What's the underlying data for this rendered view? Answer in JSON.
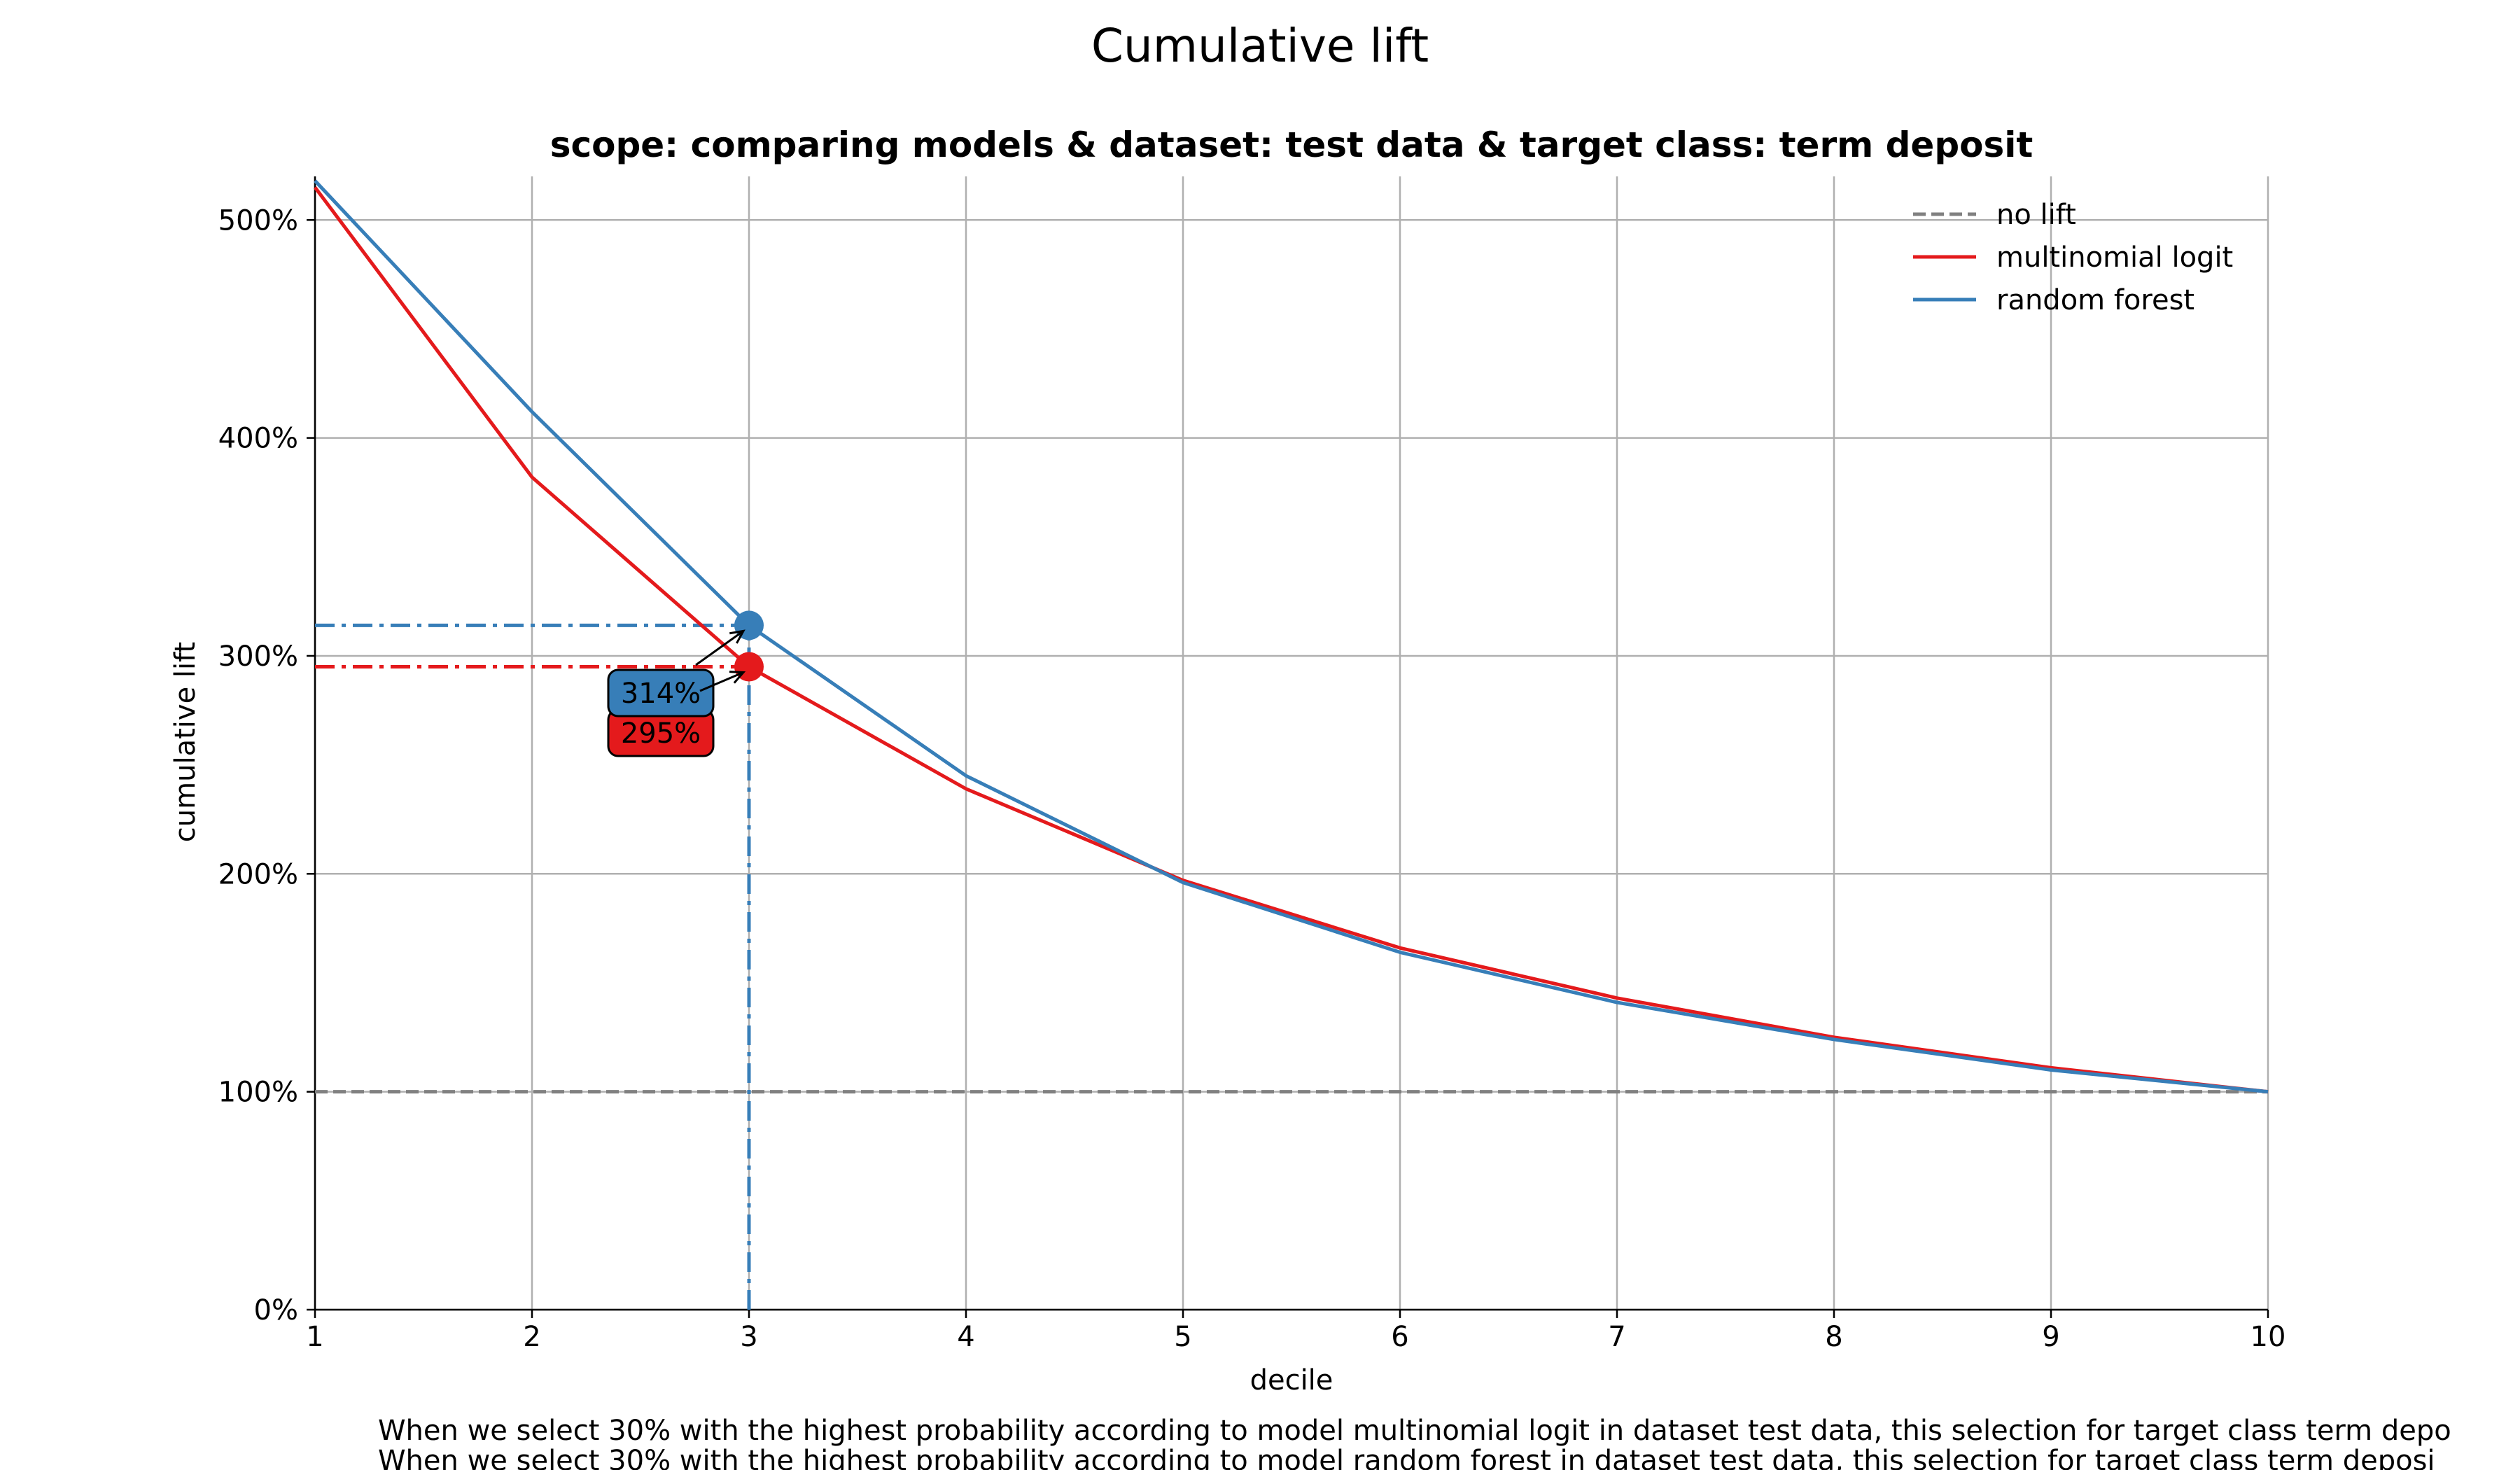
{
  "figure": {
    "suptitle": "Cumulative lift",
    "footnotes": [
      "When we select 30% with the highest probability according to model multinomial logit in dataset test data, this selection for target class term depo",
      "When we select 30% with the highest probability according to model random forest in dataset test data, this selection for target class term deposi"
    ]
  },
  "chart_data": {
    "type": "line",
    "title": "scope: comparing models & dataset: test data & target class: term deposit",
    "xlabel": "decile",
    "ylabel": "cumulative lift",
    "xlim": [
      1,
      10
    ],
    "ylim": [
      0,
      5.2
    ],
    "x_ticks": [
      1,
      2,
      3,
      4,
      5,
      6,
      7,
      8,
      9,
      10
    ],
    "x_tick_labels": [
      "1",
      "2",
      "3",
      "4",
      "5",
      "6",
      "7",
      "8",
      "9",
      "10"
    ],
    "y_ticks": [
      0,
      1,
      2,
      3,
      4,
      5
    ],
    "y_tick_labels": [
      "0%",
      "100%",
      "200%",
      "300%",
      "400%",
      "500%"
    ],
    "grid": true,
    "legend_position": "top-right",
    "x": [
      1,
      2,
      3,
      4,
      5,
      6,
      7,
      8,
      9,
      10
    ],
    "series": [
      {
        "name": "no lift",
        "style": "dashed",
        "color": "#808080",
        "values": [
          1,
          1,
          1,
          1,
          1,
          1,
          1,
          1,
          1,
          1
        ]
      },
      {
        "name": "multinomial logit",
        "style": "solid",
        "color": "#e41a1c",
        "values": [
          5.15,
          3.82,
          2.95,
          2.39,
          1.97,
          1.66,
          1.43,
          1.25,
          1.11,
          1.0
        ]
      },
      {
        "name": "random forest",
        "style": "solid",
        "color": "#377eb8",
        "values": [
          5.18,
          4.12,
          3.14,
          2.45,
          1.96,
          1.64,
          1.41,
          1.24,
          1.1,
          1.0
        ]
      }
    ],
    "highlight": {
      "decile": 3,
      "points": [
        {
          "series": "multinomial logit",
          "value": 2.95,
          "label": "295%",
          "color": "#e41a1c"
        },
        {
          "series": "random forest",
          "value": 3.14,
          "label": "314%",
          "color": "#377eb8"
        }
      ]
    }
  }
}
